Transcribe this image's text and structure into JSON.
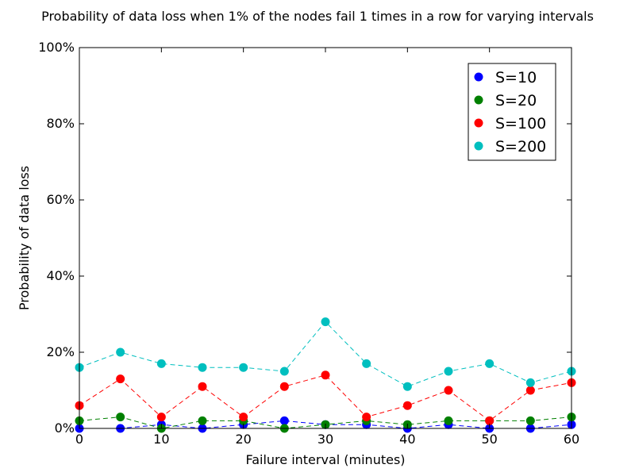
{
  "chart_data": {
    "type": "line",
    "title": "Probability of data loss when 1% of the nodes fail 1 times in a row for varying intervals",
    "xlabel": "Failure interval (minutes)",
    "ylabel": "Probability of data loss",
    "xlim": [
      0,
      60
    ],
    "ylim": [
      0,
      100
    ],
    "x_ticks": [
      0,
      10,
      20,
      30,
      40,
      50,
      60
    ],
    "y_ticks": [
      0,
      20,
      40,
      60,
      80,
      100
    ],
    "y_tick_labels": [
      "0%",
      "20%",
      "40%",
      "60%",
      "80%",
      "100%"
    ],
    "grid": false,
    "legend_position": "top-right",
    "x": [
      0,
      5,
      10,
      15,
      20,
      25,
      30,
      35,
      40,
      45,
      50,
      55,
      60
    ],
    "series": [
      {
        "name": "S=10",
        "color": "#0000ff",
        "values": [
          0,
          0,
          1,
          0,
          1,
          2,
          1,
          1,
          0,
          1,
          0,
          0,
          1
        ]
      },
      {
        "name": "S=20",
        "color": "#008000",
        "values": [
          2,
          3,
          0,
          2,
          2,
          0,
          1,
          2,
          1,
          2,
          2,
          2,
          3
        ]
      },
      {
        "name": "S=100",
        "color": "#ff0000",
        "values": [
          6,
          13,
          3,
          11,
          3,
          11,
          14,
          3,
          6,
          10,
          2,
          10,
          12
        ]
      },
      {
        "name": "S=200",
        "color": "#00bfbf",
        "values": [
          16,
          20,
          17,
          16,
          16,
          15,
          28,
          17,
          11,
          15,
          17,
          12,
          15
        ]
      }
    ]
  }
}
